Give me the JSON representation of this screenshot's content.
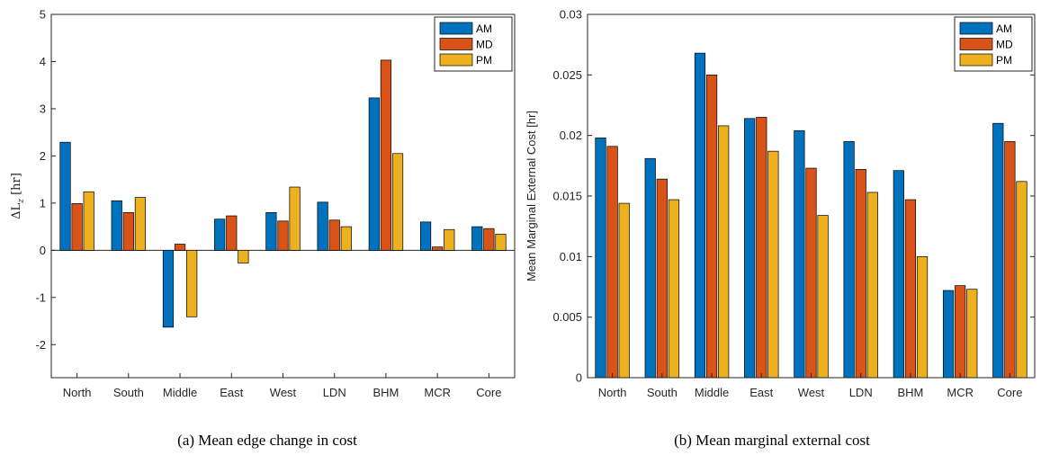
{
  "colors": {
    "AM": "#0072BD",
    "MD": "#D95319",
    "PM": "#EDB120"
  },
  "chart_data": [
    {
      "type": "bar",
      "caption": "(a) Mean edge change in cost",
      "ylabel": "ΔL_z [hr]",
      "ylim": [
        -2.7,
        5
      ],
      "yticks": [
        -2,
        -1,
        0,
        1,
        2,
        3,
        4,
        5
      ],
      "legend_position": "top-right",
      "categories": [
        "North",
        "South",
        "Middle",
        "East",
        "West",
        "LDN",
        "BHM",
        "MCR",
        "Core"
      ],
      "series": [
        {
          "name": "AM",
          "values": [
            2.29,
            1.05,
            -1.63,
            0.66,
            0.8,
            1.02,
            3.23,
            0.6,
            0.5
          ]
        },
        {
          "name": "MD",
          "values": [
            0.99,
            0.8,
            0.13,
            0.73,
            0.62,
            0.64,
            4.03,
            0.07,
            0.46
          ]
        },
        {
          "name": "PM",
          "values": [
            1.24,
            1.12,
            -1.41,
            -0.27,
            1.34,
            0.5,
            2.05,
            0.44,
            0.34
          ]
        }
      ]
    },
    {
      "type": "bar",
      "caption": "(b) Mean marginal external cost",
      "ylabel": "Mean Marginal External Cost [hr]",
      "ylim": [
        0,
        0.03
      ],
      "yticks": [
        0,
        0.005,
        0.01,
        0.015,
        0.02,
        0.025,
        0.03
      ],
      "legend_position": "top-right",
      "categories": [
        "North",
        "South",
        "Middle",
        "East",
        "West",
        "LDN",
        "BHM",
        "MCR",
        "Core"
      ],
      "series": [
        {
          "name": "AM",
          "values": [
            0.0198,
            0.0181,
            0.0268,
            0.0214,
            0.0204,
            0.0195,
            0.0171,
            0.0072,
            0.021
          ]
        },
        {
          "name": "MD",
          "values": [
            0.0191,
            0.0164,
            0.025,
            0.0215,
            0.0173,
            0.0172,
            0.0147,
            0.0076,
            0.0195
          ]
        },
        {
          "name": "PM",
          "values": [
            0.0144,
            0.0147,
            0.0208,
            0.0187,
            0.0134,
            0.0153,
            0.01,
            0.0073,
            0.0162
          ]
        }
      ]
    }
  ]
}
